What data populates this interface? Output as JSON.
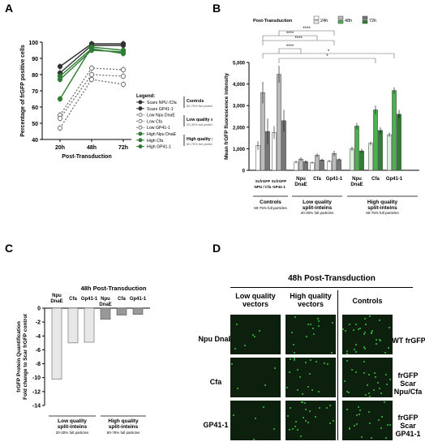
{
  "panel_labels": {
    "a": "A",
    "b": "B",
    "c": "C",
    "d": "D"
  },
  "chart_data": [
    {
      "panel": "A",
      "type": "line",
      "xlabel": "Post-Transduction",
      "ylabel": "Percentage of frGFP positive cells",
      "categories": [
        "20h",
        "48h",
        "72h"
      ],
      "ylim": [
        40,
        100
      ],
      "yticks": [
        40,
        50,
        60,
        70,
        80,
        90,
        100
      ],
      "legend_title": "Legend:",
      "series": [
        {
          "name": "Scars NPU /Cfa",
          "values": [
            85,
            99,
            99
          ],
          "color": "#333333",
          "marker": "filled",
          "dash": false
        },
        {
          "name": "Scars GP41-1",
          "values": [
            81,
            98,
            98
          ],
          "color": "#333333",
          "marker": "filled",
          "dash": false
        },
        {
          "name": "Low Npu DnaE",
          "values": [
            47,
            77,
            74
          ],
          "color": "#777777",
          "marker": "open",
          "dash": true
        },
        {
          "name": "Low Cfa",
          "values": [
            55,
            84,
            83
          ],
          "color": "#777777",
          "marker": "open",
          "dash": true
        },
        {
          "name": "Low GP41-1",
          "values": [
            53,
            80,
            79
          ],
          "color": "#777777",
          "marker": "open",
          "dash": true
        },
        {
          "name": "High Npu DnaE",
          "values": [
            65,
            97,
            95
          ],
          "color": "#2e7d32",
          "marker": "filled",
          "dash": false
        },
        {
          "name": "High Cfa",
          "values": [
            77,
            95,
            94
          ],
          "color": "#2e7d32",
          "marker": "filled",
          "dash": false
        },
        {
          "name": "High GP41-1",
          "values": [
            79,
            96,
            93
          ],
          "color": "#2e7d32",
          "marker": "filled",
          "dash": false
        }
      ],
      "groups": [
        {
          "title": "Controls",
          "sub": "60-75% full particles"
        },
        {
          "title": "Low quality split-inteins",
          "sub": "20-30% full particles"
        },
        {
          "title": "High quality split-inteins",
          "sub": "60-75% full particles"
        }
      ]
    },
    {
      "panel": "B",
      "type": "bar",
      "ylabel": "Mean frGFP fluorescence intensity",
      "ylim": [
        0,
        5000
      ],
      "yticks": [
        0,
        1000,
        2000,
        3000,
        4000,
        5000
      ],
      "ytick_labels": [
        "0",
        "1,000",
        "2,000",
        "3,000",
        "4,000",
        "5,000"
      ],
      "legend_title": "Post-Transduction",
      "legend": [
        "24h",
        "48h",
        "72h"
      ],
      "categories": [
        "ScfrGFP NPU / Cfa",
        "ScfrGFP GP41-1",
        "Npu DnaE",
        "Cfa",
        "Gp41-1",
        "Npu DnaE",
        "Cfa",
        "Gp41-1"
      ],
      "series": [
        {
          "name": "24h",
          "values": [
            1150,
            1750,
            380,
            350,
            420,
            1000,
            1250,
            1650
          ],
          "errors": [
            200,
            300,
            60,
            50,
            60,
            100,
            80,
            100
          ]
        },
        {
          "name": "48h",
          "values": [
            3600,
            4450,
            520,
            700,
            780,
            2050,
            2800,
            3700
          ],
          "errors": [
            500,
            400,
            80,
            80,
            120,
            150,
            200,
            150
          ]
        },
        {
          "name": "72h",
          "values": [
            1800,
            2300,
            400,
            480,
            500,
            900,
            1850,
            2600
          ],
          "errors": [
            600,
            500,
            70,
            60,
            60,
            100,
            150,
            200
          ]
        }
      ],
      "significance": [
        "****",
        "****",
        "****",
        "****",
        "*",
        "*"
      ],
      "groups": [
        {
          "title": "Controls",
          "sub": "60-75% full particles"
        },
        {
          "title": "Low quality split-inteins",
          "sub": "20-30% full particles"
        },
        {
          "title": "High quality split-inteins",
          "sub": "60-75% full particles"
        }
      ]
    },
    {
      "panel": "C",
      "type": "bar",
      "title": "48h Post-Transduction",
      "ylabel": "frGFP Protein Quantification Fold change to Scar frGFP control",
      "ylim": [
        -14,
        0
      ],
      "yticks": [
        0,
        -2,
        -4,
        -6,
        -8,
        -10,
        -12,
        -14
      ],
      "categories": [
        "Npu DnaE",
        "Cfa",
        "Gp41-1",
        "Npu DnaE",
        "Cfa",
        "Gp41-1"
      ],
      "values": [
        -10.2,
        -5.0,
        -4.9,
        -1.6,
        -1.0,
        -0.9
      ],
      "groups": [
        {
          "title": "Low quality split-inteins",
          "sub": "20-30% full particles"
        },
        {
          "title": "High quality split-inteins",
          "sub": "60-75% full particles"
        }
      ]
    }
  ],
  "panel_d": {
    "title": "48h Post-Transduction",
    "col_headers": [
      "Low quality vectors",
      "High quality vectors",
      "Controls"
    ],
    "row_labels": [
      "Npu DnaE",
      "Cfa",
      "GP41-1"
    ],
    "control_labels": [
      "WT frGFP",
      "frGFP Scar Npu/Cfa",
      "frGFP Scar GP41-1"
    ]
  }
}
